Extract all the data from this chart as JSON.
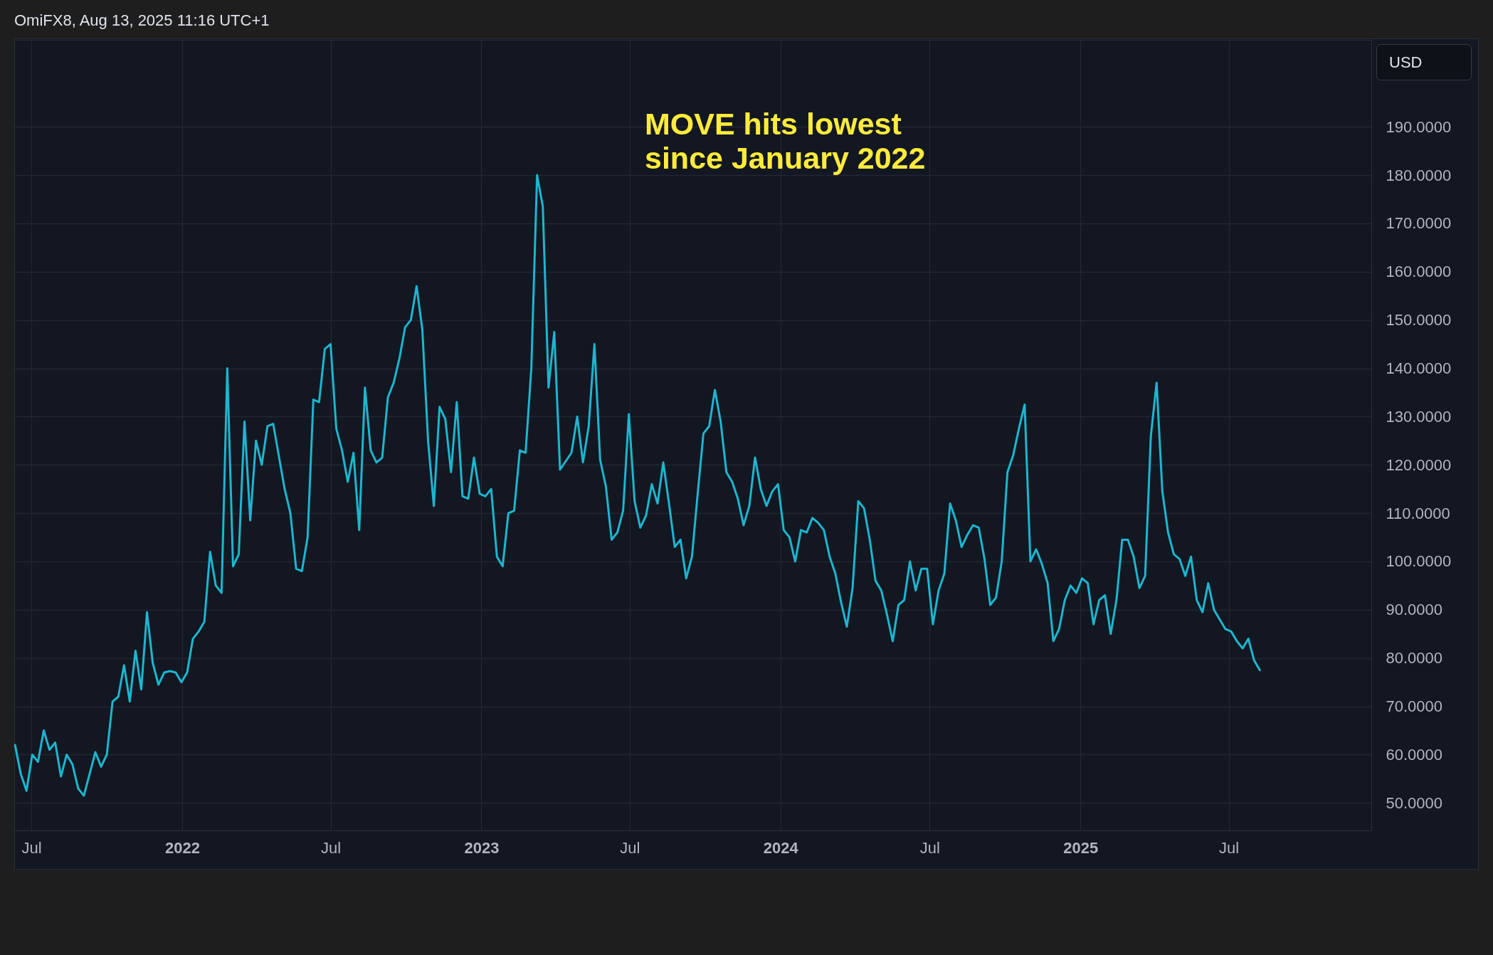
{
  "chart_data": {
    "type": "line",
    "annotations": [
      "OmiFX8, Aug 13, 2025 11:16 UTC+1",
      "MOVE hits lowest since January 2022",
      "USD"
    ],
    "x": [
      "2021-06-11",
      "2021-06-18",
      "2021-06-25",
      "2021-07-02",
      "2021-07-09",
      "2021-07-16",
      "2021-07-23",
      "2021-07-30",
      "2021-08-06",
      "2021-08-13",
      "2021-08-20",
      "2021-08-27",
      "2021-09-03",
      "2021-09-17",
      "2021-09-24",
      "2021-10-01",
      "2021-10-08",
      "2021-10-15",
      "2021-10-22",
      "2021-10-29",
      "2021-11-05",
      "2021-11-12",
      "2021-11-19",
      "2021-11-26",
      "2021-12-03",
      "2021-12-10",
      "2021-12-17",
      "2021-12-24",
      "2021-12-31",
      "2022-01-07",
      "2022-01-14",
      "2022-01-21",
      "2022-01-28",
      "2022-02-04",
      "2022-02-11",
      "2022-02-18",
      "2022-02-25",
      "2022-03-04",
      "2022-03-11",
      "2022-03-18",
      "2022-03-25",
      "2022-04-01",
      "2022-04-08",
      "2022-04-15",
      "2022-04-22",
      "2022-05-06",
      "2022-05-13",
      "2022-05-20",
      "2022-05-27",
      "2022-06-03",
      "2022-06-10",
      "2022-06-17",
      "2022-06-24",
      "2022-07-01",
      "2022-07-08",
      "2022-07-15",
      "2022-07-22",
      "2022-07-29",
      "2022-08-05",
      "2022-08-12",
      "2022-08-19",
      "2022-08-26",
      "2022-09-02",
      "2022-09-09",
      "2022-09-16",
      "2022-09-23",
      "2022-09-30",
      "2022-10-07",
      "2022-10-14",
      "2022-10-21",
      "2022-10-28",
      "2022-11-04",
      "2022-11-11",
      "2022-11-18",
      "2022-11-25",
      "2022-12-02",
      "2022-12-09",
      "2022-12-16",
      "2022-12-23",
      "2022-12-30",
      "2023-01-06",
      "2023-01-13",
      "2023-01-20",
      "2023-01-27",
      "2023-02-03",
      "2023-02-10",
      "2023-02-17",
      "2023-02-24",
      "2023-03-03",
      "2023-03-10",
      "2023-03-17",
      "2023-03-24",
      "2023-03-31",
      "2023-04-07",
      "2023-04-21",
      "2023-04-28",
      "2023-05-05",
      "2023-05-12",
      "2023-05-19",
      "2023-05-26",
      "2023-06-02",
      "2023-06-09",
      "2023-06-16",
      "2023-06-23",
      "2023-06-30",
      "2023-07-07",
      "2023-07-14",
      "2023-07-21",
      "2023-07-28",
      "2023-08-04",
      "2023-08-11",
      "2023-08-18",
      "2023-08-25",
      "2023-09-01",
      "2023-09-08",
      "2023-09-15",
      "2023-09-22",
      "2023-09-29",
      "2023-10-06",
      "2023-10-13",
      "2023-10-20",
      "2023-10-27",
      "2023-11-03",
      "2023-11-10",
      "2023-11-17",
      "2023-11-24",
      "2023-12-01",
      "2023-12-08",
      "2023-12-15",
      "2023-12-22",
      "2023-12-29",
      "2024-01-05",
      "2024-01-12",
      "2024-01-19",
      "2024-01-26",
      "2024-02-02",
      "2024-02-09",
      "2024-02-16",
      "2024-02-23",
      "2024-03-01",
      "2024-03-08",
      "2024-03-15",
      "2024-03-22",
      "2024-03-29",
      "2024-04-05",
      "2024-04-12",
      "2024-04-19",
      "2024-04-26",
      "2024-05-03",
      "2024-05-10",
      "2024-05-17",
      "2024-05-24",
      "2024-05-31",
      "2024-06-07",
      "2024-06-14",
      "2024-06-21",
      "2024-06-28",
      "2024-07-05",
      "2024-07-12",
      "2024-07-19",
      "2024-07-26",
      "2024-08-02",
      "2024-08-09",
      "2024-08-16",
      "2024-08-23",
      "2024-08-30",
      "2024-09-06",
      "2024-09-13",
      "2024-09-20",
      "2024-09-27",
      "2024-10-04",
      "2024-10-11",
      "2024-10-18",
      "2024-10-25",
      "2024-11-01",
      "2024-11-08",
      "2024-11-15",
      "2024-11-22",
      "2024-11-29",
      "2024-12-06",
      "2024-12-13",
      "2024-12-20",
      "2024-12-27",
      "2025-01-03",
      "2025-01-10",
      "2025-01-17",
      "2025-01-24",
      "2025-01-31",
      "2025-02-07",
      "2025-02-14",
      "2025-02-21",
      "2025-02-28",
      "2025-03-07",
      "2025-03-14",
      "2025-03-21",
      "2025-03-28",
      "2025-04-04",
      "2025-04-11",
      "2025-04-18",
      "2025-04-25",
      "2025-05-02",
      "2025-05-09",
      "2025-05-16",
      "2025-05-23",
      "2025-05-30",
      "2025-06-06",
      "2025-06-13",
      "2025-06-20",
      "2025-06-27",
      "2025-07-04",
      "2025-07-11",
      "2025-07-18",
      "2025-07-25",
      "2025-08-01",
      "2025-08-08"
    ],
    "series": [
      {
        "color": "#1cb6cf",
        "values": [
          62,
          56,
          52.5,
          60,
          58.5,
          65,
          61,
          62.5,
          55.5,
          60,
          58,
          53,
          51.5,
          60.5,
          57.5,
          60,
          71,
          72,
          78.5,
          71,
          81.5,
          73.5,
          89.5,
          79,
          74.5,
          77,
          77.3,
          77,
          75,
          77,
          84,
          85.5,
          87.5,
          102,
          95,
          93.5,
          140,
          99,
          101.5,
          129,
          108.5,
          125,
          120,
          128,
          128.5,
          115,
          110,
          98.5,
          98,
          105,
          133.5,
          133,
          144,
          145,
          127.5,
          123,
          116.5,
          122.5,
          106.5,
          136,
          123,
          120.5,
          121.5,
          134,
          137,
          142,
          148.5,
          150,
          157,
          148,
          125,
          111.5,
          132,
          129.5,
          118.5,
          133,
          113.5,
          113,
          121.5,
          114,
          113.5,
          115,
          101,
          99,
          110,
          110.5,
          123,
          122.5,
          140,
          180,
          173.5,
          136,
          147.5,
          119,
          122.5,
          130,
          120.5,
          128,
          145,
          121,
          115.5,
          104.5,
          106,
          110.5,
          130.5,
          112.5,
          107,
          109.5,
          116,
          112,
          120.5,
          112,
          103,
          104.5,
          96.5,
          101,
          114,
          126.5,
          128,
          135.5,
          129,
          118.5,
          116.5,
          113,
          107.5,
          111.5,
          121.5,
          115,
          111.5,
          114.5,
          116,
          106.5,
          105,
          100,
          106.5,
          106,
          109,
          108,
          106.5,
          101,
          97.5,
          91.5,
          86.5,
          94.5,
          112.5,
          111,
          104.5,
          96,
          94,
          89,
          83.5,
          91,
          92,
          100,
          94,
          98.5,
          98.5,
          87,
          94,
          97.5,
          112,
          108.5,
          103,
          105.5,
          107.5,
          107,
          100.5,
          91,
          92.5,
          100,
          118.5,
          122,
          127.5,
          132.5,
          100,
          102.5,
          99.5,
          95.5,
          83.5,
          86,
          92,
          95,
          93.5,
          96.5,
          95.5,
          87,
          92,
          93,
          85,
          92,
          104.5,
          104.5,
          101,
          94.5,
          97,
          126,
          137,
          114.5,
          106,
          101.5,
          100.5,
          97,
          101,
          92,
          89.5,
          95.5,
          90,
          88,
          86,
          85.5,
          83.5,
          82,
          84,
          79.5,
          77.5
        ]
      }
    ],
    "xlim": [
      "2021-06-10",
      "2025-12-22"
    ],
    "xticks": [
      {
        "value": "2021-07-01",
        "label": "Jul"
      },
      {
        "value": "2022-01-01",
        "label": "2022"
      },
      {
        "value": "2022-07-01",
        "label": "Jul"
      },
      {
        "value": "2023-01-01",
        "label": "2023"
      },
      {
        "value": "2023-07-01",
        "label": "Jul"
      },
      {
        "value": "2024-01-01",
        "label": "2024"
      },
      {
        "value": "2024-07-01",
        "label": "Jul"
      },
      {
        "value": "2025-01-01",
        "label": "2025"
      },
      {
        "value": "2025-07-01",
        "label": "Jul"
      }
    ],
    "ylim": [
      44.3,
      208
    ],
    "yticks": [
      {
        "value": 50,
        "label": "50.0000"
      },
      {
        "value": 60,
        "label": "60.0000"
      },
      {
        "value": 70,
        "label": "70.0000"
      },
      {
        "value": 80,
        "label": "80.0000"
      },
      {
        "value": 90,
        "label": "90.0000"
      },
      {
        "value": 100,
        "label": "100.0000"
      },
      {
        "value": 110,
        "label": "110.0000"
      },
      {
        "value": 120,
        "label": "120.0000"
      },
      {
        "value": 130,
        "label": "130.0000"
      },
      {
        "value": 140,
        "label": "140.0000"
      },
      {
        "value": 150,
        "label": "150.0000"
      },
      {
        "value": 160,
        "label": "160.0000"
      },
      {
        "value": 170,
        "label": "170.0000"
      },
      {
        "value": 180,
        "label": "180.0000"
      },
      {
        "value": 190,
        "label": "190.0000"
      }
    ],
    "grid": true
  }
}
